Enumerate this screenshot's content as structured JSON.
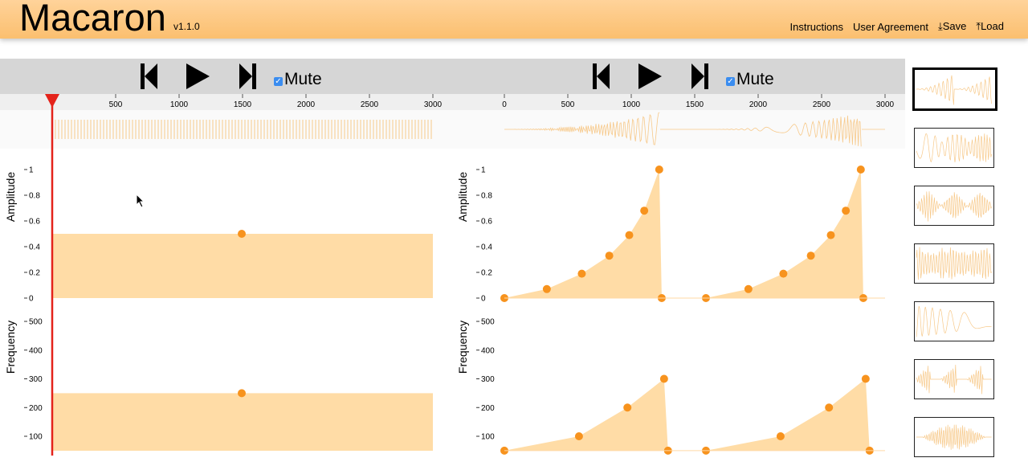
{
  "app": {
    "title": "Macaron",
    "version": "v1.1.0"
  },
  "nav": {
    "instructions": "Instructions",
    "user_agreement": "User Agreement",
    "save": "Save",
    "load": "Load"
  },
  "editor_left": {
    "mute_label": "Mute",
    "mute_checked": true,
    "ruler_ticks": [
      "500",
      "1000",
      "1500",
      "2000",
      "2500",
      "3000"
    ],
    "amplitude_label": "Amplitude",
    "amplitude_ticks": [
      "1",
      "0.8",
      "0.6",
      "0.4",
      "0.2",
      "0"
    ],
    "frequency_label": "Frequency",
    "frequency_ticks": [
      "500",
      "400",
      "300",
      "200",
      "100"
    ],
    "amplitude_level": 0.5,
    "frequency_level": 250
  },
  "editor_right": {
    "mute_label": "Mute",
    "mute_checked": true,
    "ruler_ticks": [
      "0",
      "500",
      "1000",
      "1500",
      "2000",
      "2500",
      "3000"
    ],
    "amplitude_label": "Amplitude",
    "amplitude_ticks": [
      "1",
      "0.8",
      "0.6",
      "0.4",
      "0.2",
      "0"
    ],
    "frequency_label": "Frequency",
    "frequency_ticks": [
      "500",
      "400",
      "300",
      "200",
      "100"
    ]
  },
  "colors": {
    "accent": "#f7931e",
    "fill": "#ffdca6",
    "playhead": "#e4231b",
    "toolbar": "#d6d6d6"
  },
  "icons": {
    "skip_back": "skip-back-icon",
    "play": "play-icon",
    "skip_forward": "skip-forward-icon",
    "download": "download-icon",
    "upload": "upload-icon"
  }
}
